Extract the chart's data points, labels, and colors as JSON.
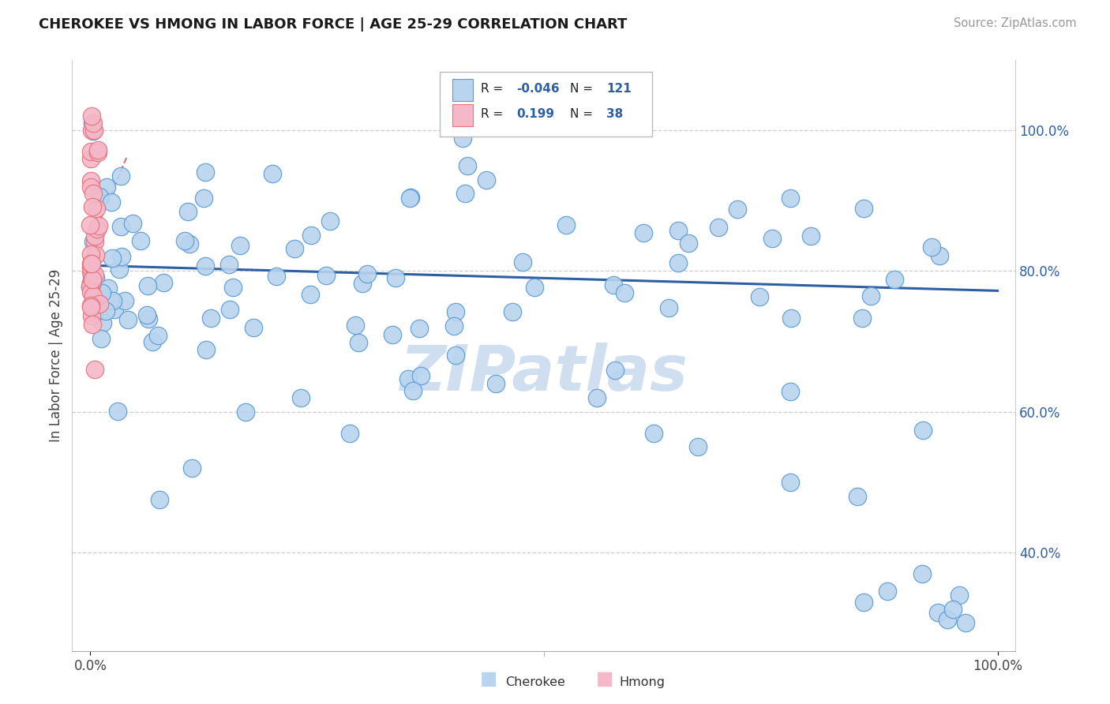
{
  "title": "CHEROKEE VS HMONG IN LABOR FORCE | AGE 25-29 CORRELATION CHART",
  "source": "Source: ZipAtlas.com",
  "ylabel": "In Labor Force | Age 25-29",
  "ytick_labels": [
    "40.0%",
    "60.0%",
    "80.0%",
    "100.0%"
  ],
  "ytick_values": [
    0.4,
    0.6,
    0.8,
    1.0
  ],
  "xlim": [
    -0.02,
    1.02
  ],
  "ylim": [
    0.26,
    1.1
  ],
  "cherokee_R": "-0.046",
  "cherokee_N": "121",
  "hmong_R": "0.199",
  "hmong_N": "38",
  "cherokee_color": "#b8d4ee",
  "cherokee_edge": "#5b9bd5",
  "hmong_color": "#f4b8c8",
  "hmong_edge": "#e8727e",
  "trend_cherokee_color": "#2e5fa3",
  "trend_hmong_color": "#d4606a",
  "r_value_color": "#2e5fa3",
  "background_color": "#ffffff",
  "grid_color": "#c8c8c8",
  "watermark_color": "#d0dff0",
  "cher_trend_start_y": 0.808,
  "cher_trend_end_y": 0.772
}
